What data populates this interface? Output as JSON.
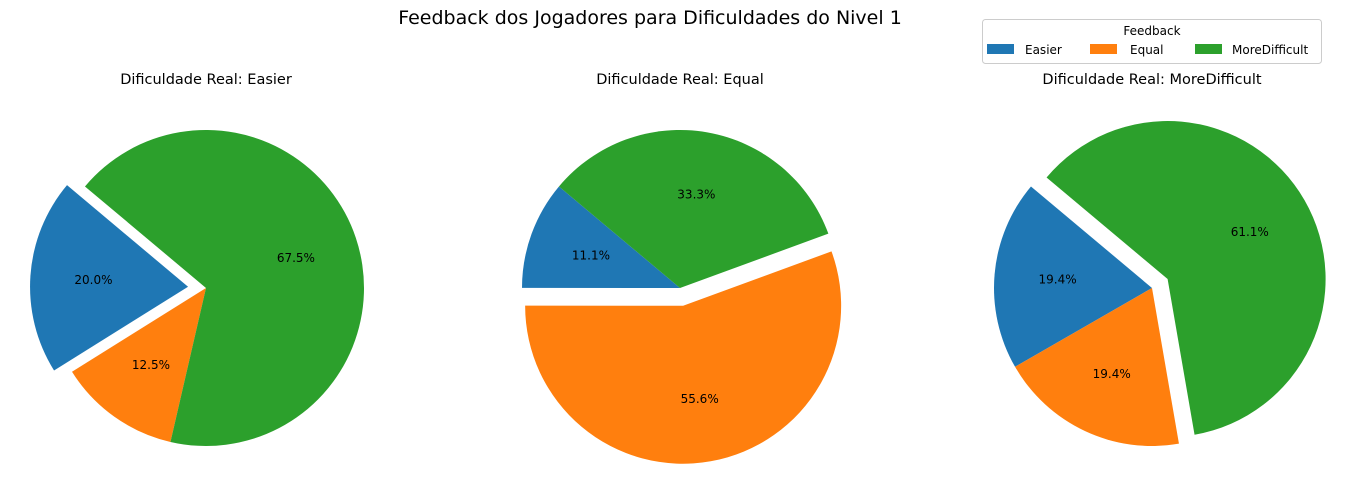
{
  "figure": {
    "title": "Feedback dos Jogadores para Dificuldades do Nivel 1"
  },
  "legend": {
    "title": "Feedback",
    "placement": "top-right",
    "entries": [
      {
        "label": "Easier",
        "color": "#1f77b4"
      },
      {
        "label": "Equal",
        "color": "#ff7f0e"
      },
      {
        "label": "MoreDifficult",
        "color": "#2ca02c"
      }
    ]
  },
  "chart_data": [
    {
      "type": "pie",
      "title": "Dificuldade Real: Easier",
      "categories": [
        "Easier",
        "Equal",
        "MoreDifficult"
      ],
      "values": [
        20.0,
        12.5,
        67.5
      ],
      "labels": [
        "20.0%",
        "12.5%",
        "67.5%"
      ],
      "colors": [
        "#1f77b4",
        "#ff7f0e",
        "#2ca02c"
      ],
      "exploded": "Easier"
    },
    {
      "type": "pie",
      "title": "Dificuldade Real: Equal",
      "categories": [
        "Easier",
        "Equal",
        "MoreDifficult"
      ],
      "values": [
        11.1,
        55.6,
        33.3
      ],
      "labels": [
        "11.1%",
        "55.6%",
        "33.3%"
      ],
      "colors": [
        "#1f77b4",
        "#ff7f0e",
        "#2ca02c"
      ],
      "exploded": "Equal"
    },
    {
      "type": "pie",
      "title": "Dificuldade Real: MoreDifficult",
      "categories": [
        "Easier",
        "Equal",
        "MoreDifficult"
      ],
      "values": [
        19.4,
        19.4,
        61.1
      ],
      "labels": [
        "19.4%",
        "19.4%",
        "61.1%"
      ],
      "colors": [
        "#1f77b4",
        "#ff7f0e",
        "#2ca02c"
      ],
      "exploded": "MoreDifficult"
    }
  ]
}
